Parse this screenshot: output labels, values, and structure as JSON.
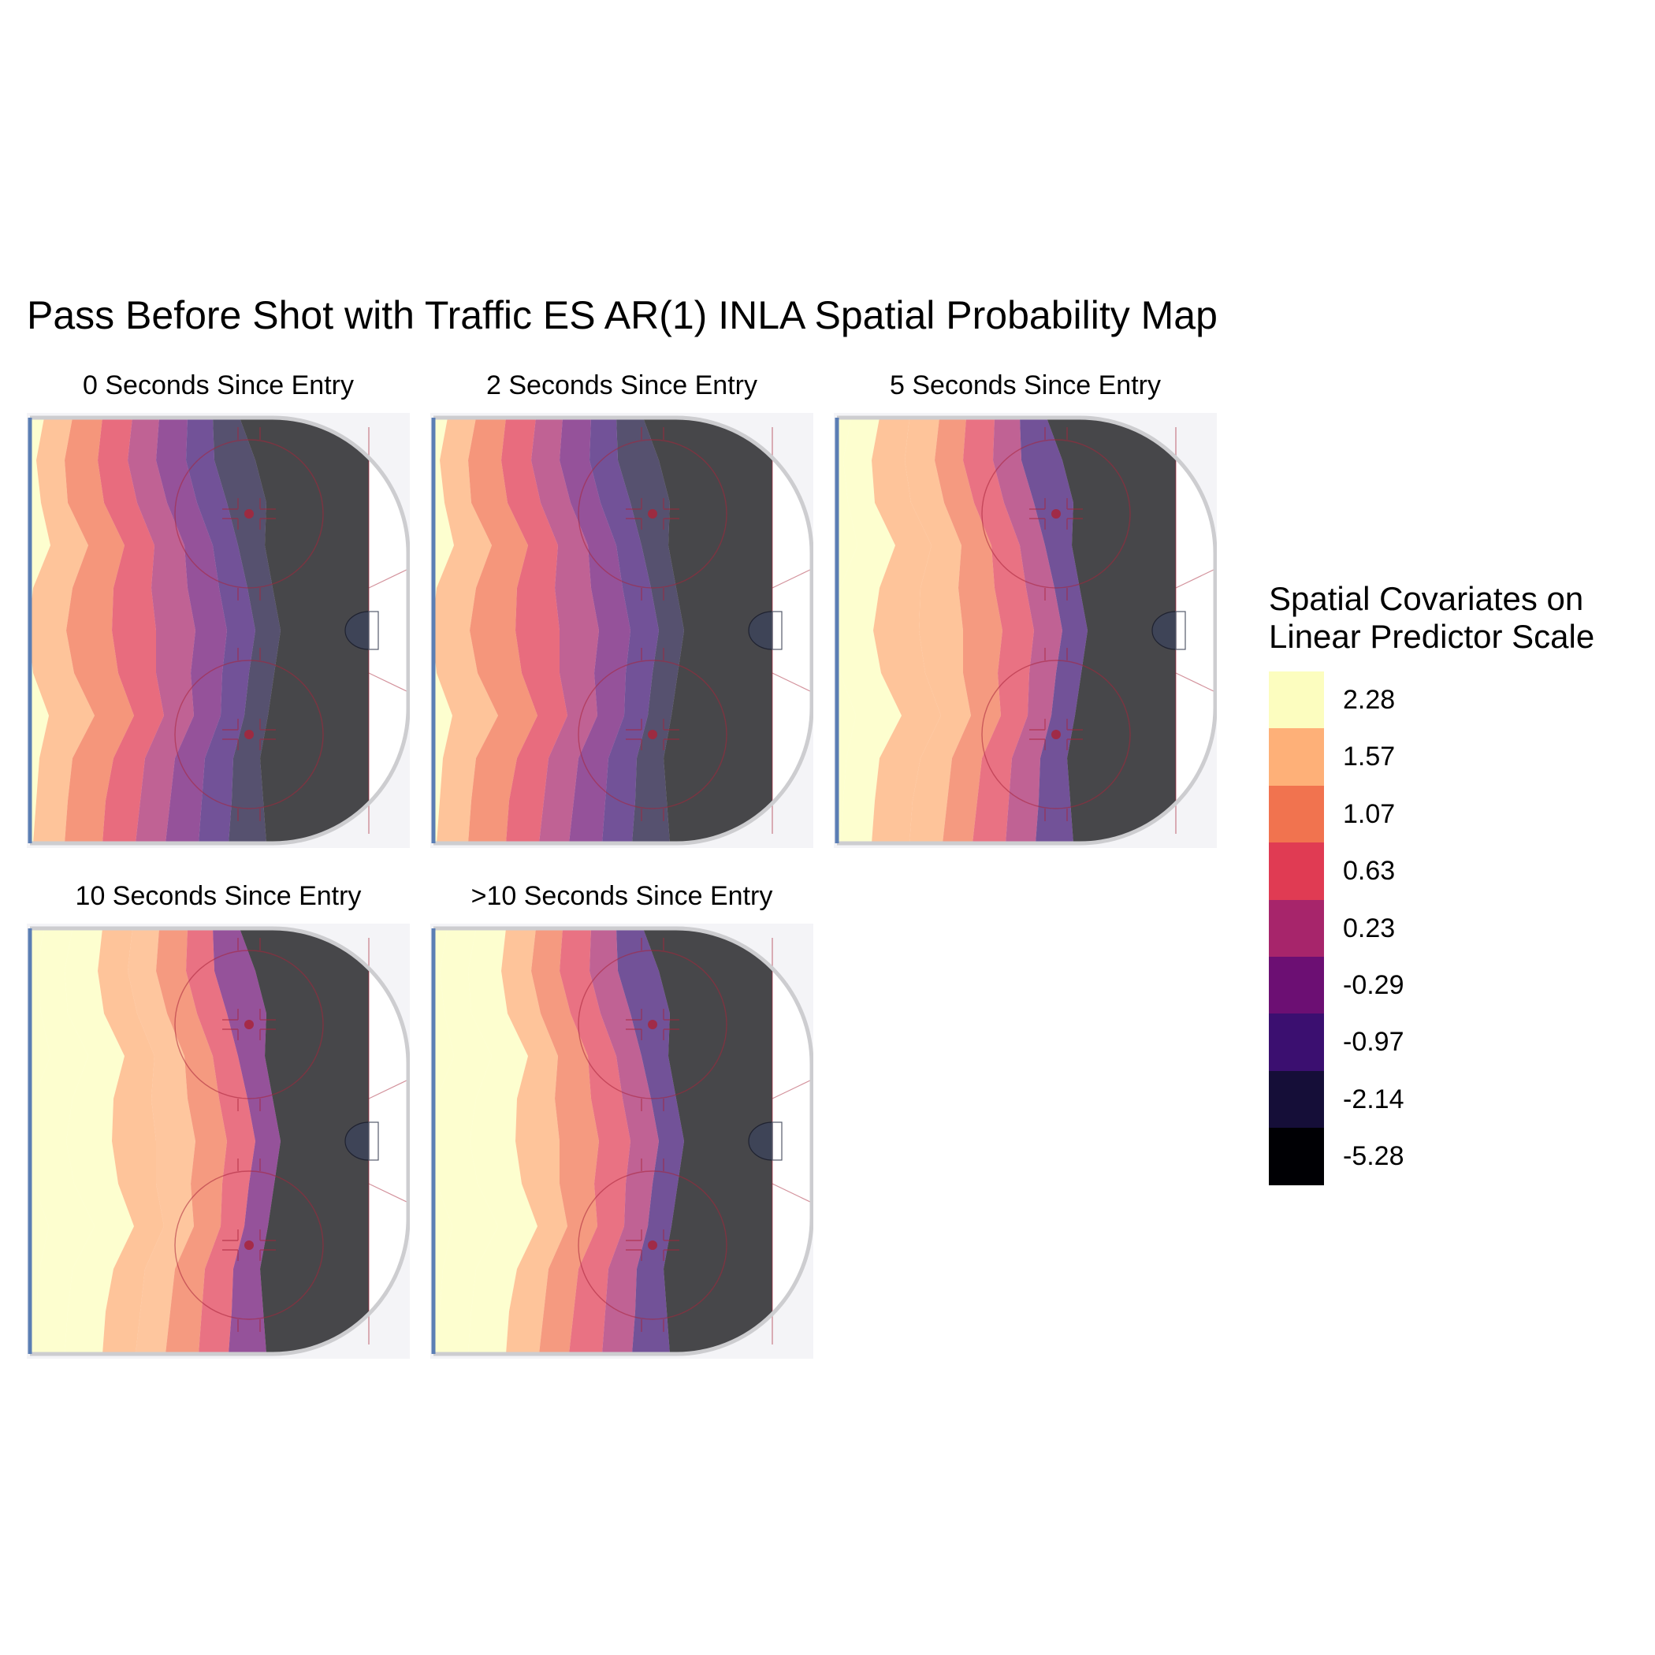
{
  "chart_data": {
    "type": "heatmap",
    "title": "Pass Before Shot with Traffic ES AR(1) INLA Spatial Probability Map",
    "facets": [
      {
        "label": "0 Seconds Since Entry",
        "shift": 0.0
      },
      {
        "label": "2 Seconds Since Entry",
        "shift": 0.2
      },
      {
        "label": "5 Seconds Since Entry",
        "shift": 0.8
      },
      {
        "label": "10 Seconds Since Entry",
        "shift": 1.25
      },
      {
        "label": ">10 Seconds Since Entry",
        "shift": 1.05
      }
    ],
    "legend": {
      "title_lines": [
        "Spatial Covariates on",
        "Linear Predictor Scale"
      ],
      "position": "right",
      "levels": [
        {
          "label": "2.28",
          "color": "#FCFDBF"
        },
        {
          "label": "1.57",
          "color": "#FEB078"
        },
        {
          "label": "1.07",
          "color": "#F1734F"
        },
        {
          "label": "0.63",
          "color": "#E03B53"
        },
        {
          "label": "0.23",
          "color": "#A7256B"
        },
        {
          "label": "-0.29",
          "color": "#6C0F73"
        },
        {
          "label": "-0.97",
          "color": "#3B0F70"
        },
        {
          "label": "-2.14",
          "color": "#150E38"
        },
        {
          "label": "-5.28",
          "color": "#000004"
        }
      ]
    },
    "rink": {
      "background": "#F4F4F7",
      "boards": "#CDCDD0",
      "blue_line": "#5B7EB4",
      "markings": "#A8253A"
    }
  }
}
